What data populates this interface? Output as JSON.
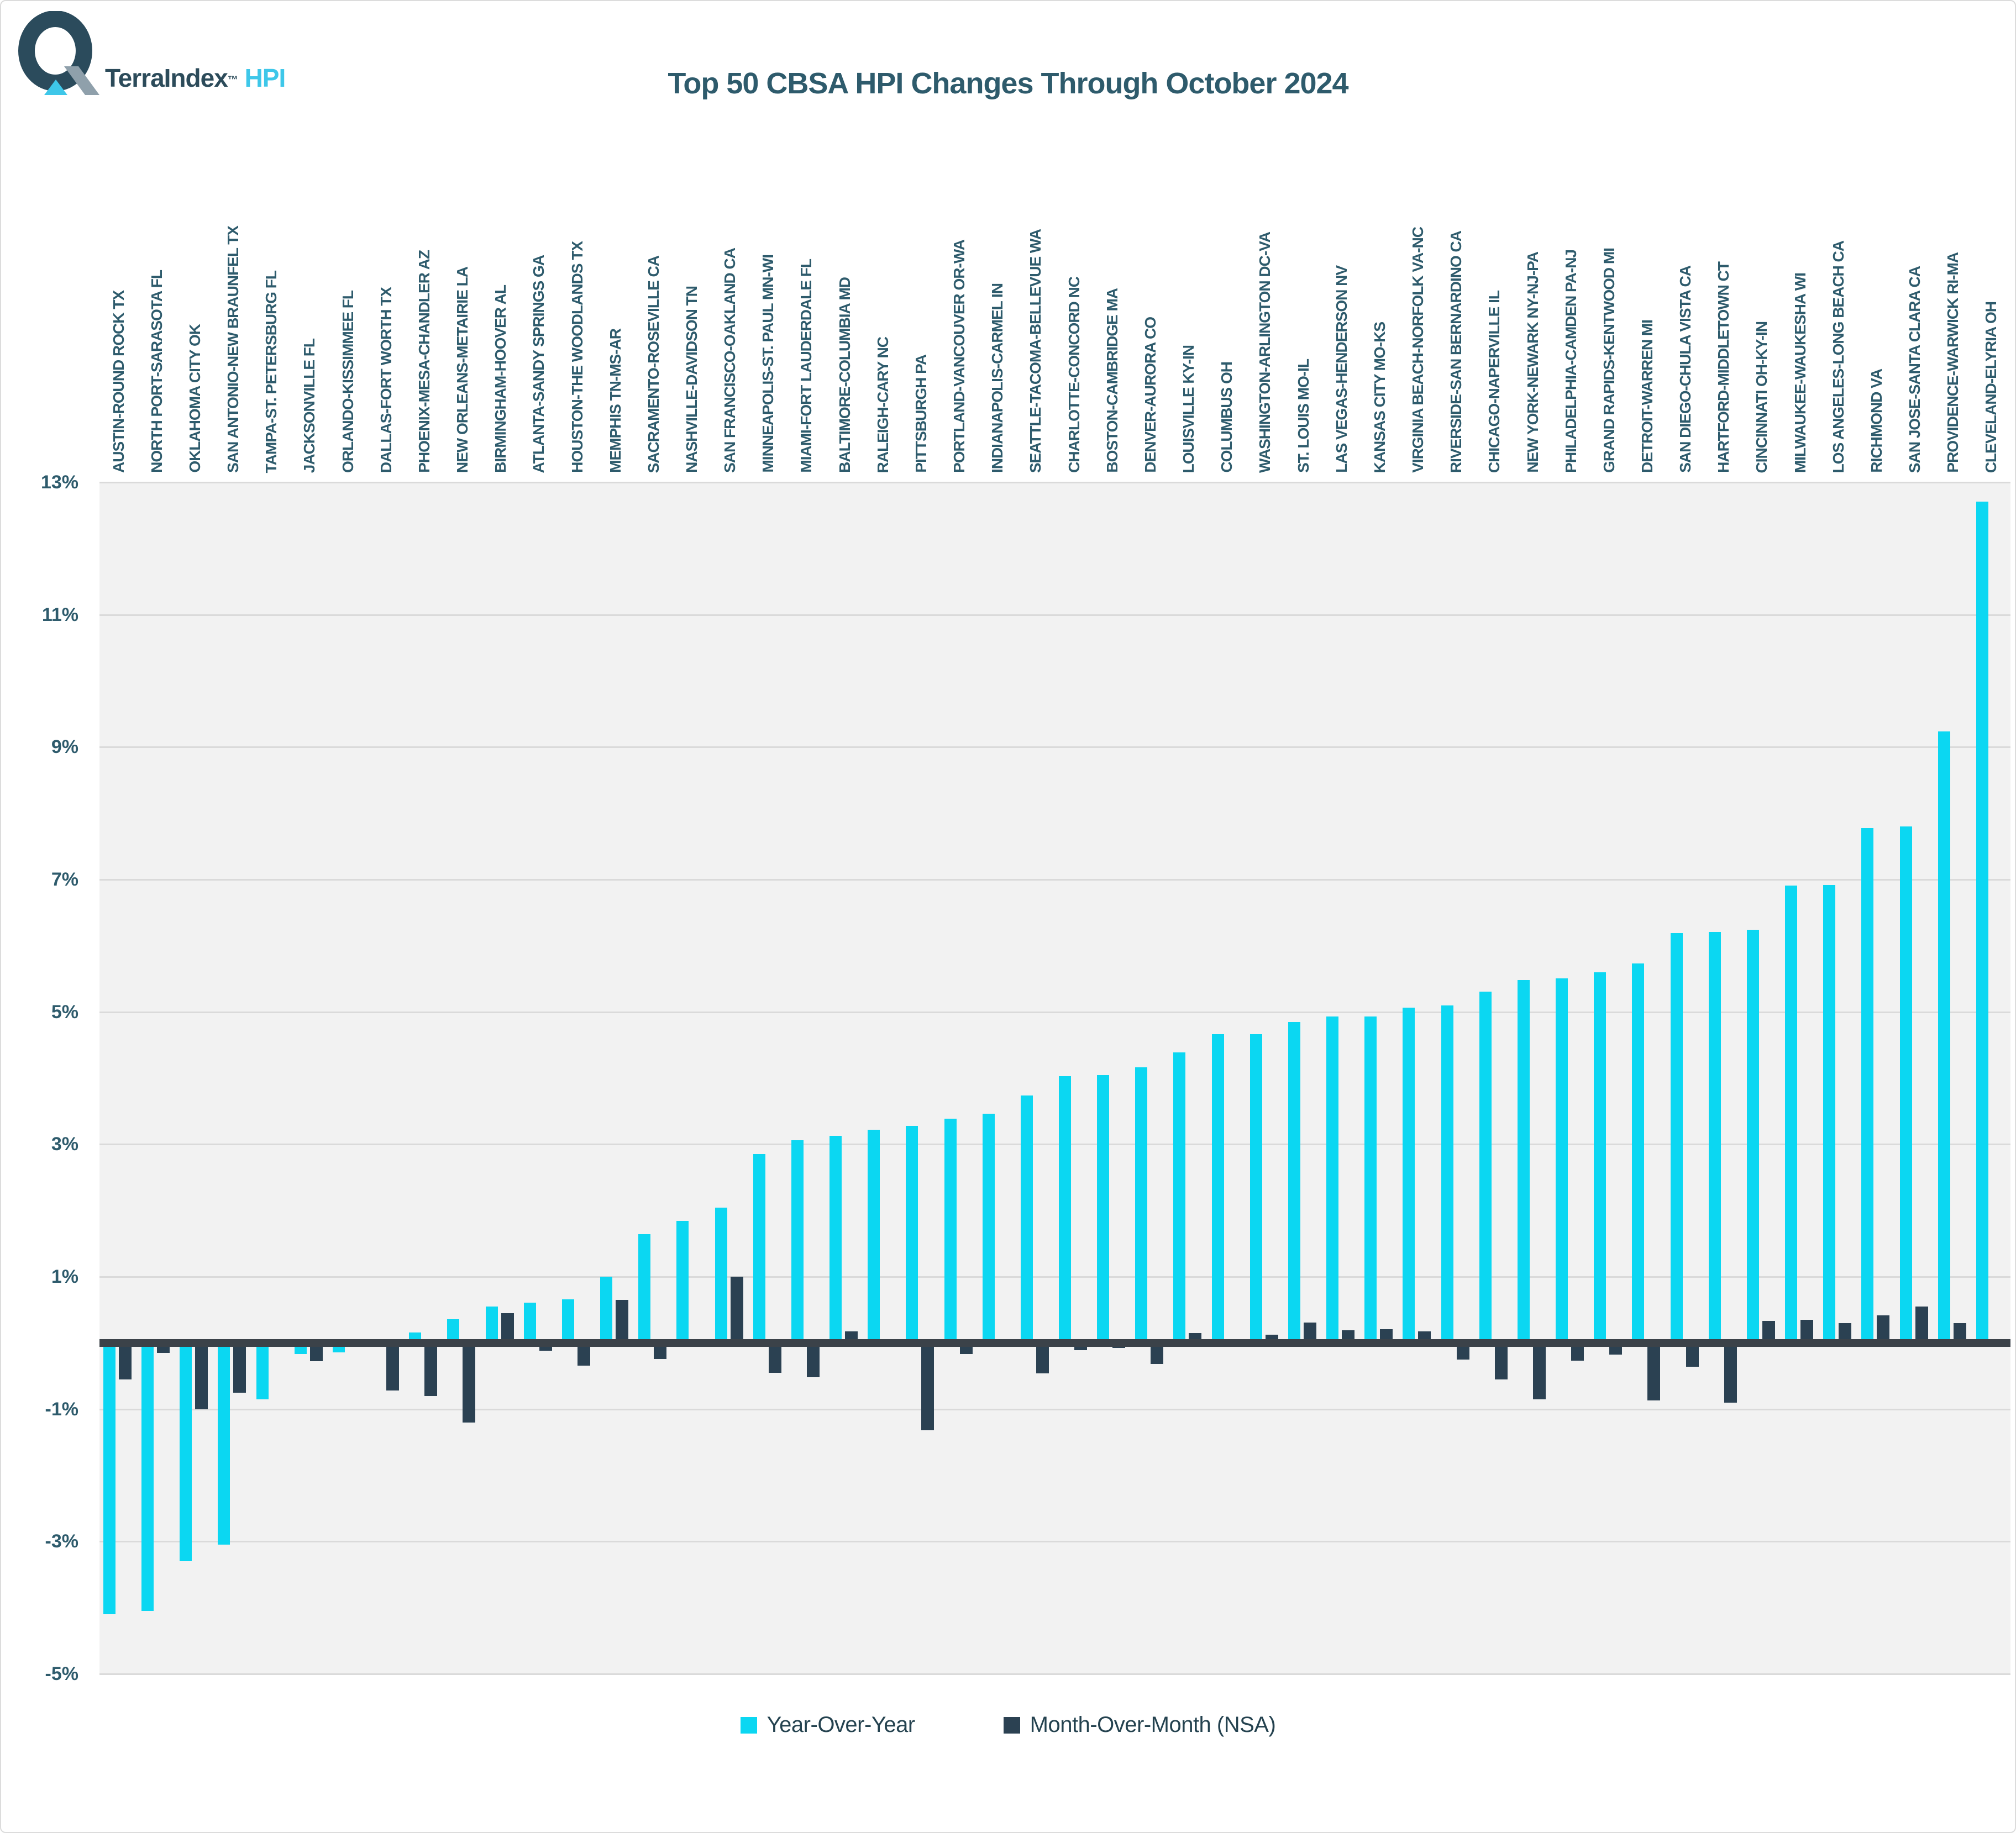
{
  "logo": {
    "brand": "TerraIndex",
    "trademark": "™",
    "product": "HPI"
  },
  "chart_data": {
    "type": "bar",
    "title": "Top 50 CBSA HPI Changes Through October 2024",
    "xlabel": "",
    "ylabel": "",
    "ylim": [
      -5,
      13
    ],
    "grid": true,
    "legend_position": "bottom",
    "y_tick_labels": [
      "13%",
      "11%",
      "9%",
      "7%",
      "5%",
      "3%",
      "1%",
      "-1%",
      "-3%",
      "-5%"
    ],
    "categories": [
      "AUSTIN-ROUND ROCK TX",
      "NORTH PORT-SARASOTA FL",
      "OKLAHOMA CITY OK",
      "SAN ANTONIO-NEW BRAUNFEL TX",
      "TAMPA-ST. PETERSBURG FL",
      "JACKSONVILLE FL",
      "ORLANDO-KISSIMMEE FL",
      "DALLAS-FORT WORTH TX",
      "PHOENIX-MESA-CHANDLER AZ",
      "NEW ORLEANS-METAIRIE LA",
      "BIRMINGHAM-HOOVER AL",
      "ATLANTA-SANDY SPRINGS GA",
      "HOUSTON-THE WOODLANDS TX",
      "MEMPHIS TN-MS-AR",
      "SACRAMENTO-ROSEVILLE CA",
      "NASHVILLE-DAVIDSON TN",
      "SAN FRANCISCO-OAKLAND CA",
      "MINNEAPOLIS-ST. PAUL MN-WI",
      "MIAMI-FORT LAUDERDALE FL",
      "BALTIMORE-COLUMBIA MD",
      "RALEIGH-CARY NC",
      "PITTSBURGH PA",
      "PORTLAND-VANCOUVER OR-WA",
      "INDIANAPOLIS-CARMEL IN",
      "SEATTLE-TACOMA-BELLEVUE WA",
      "CHARLOTTE-CONCORD NC",
      "BOSTON-CAMBRIDGE MA",
      "DENVER-AURORA CO",
      "LOUISVILLE KY-IN",
      "COLUMBUS OH",
      "WASHINGTON-ARLINGTON DC-VA",
      "ST. LOUIS MO-IL",
      "LAS VEGAS-HENDERSON NV",
      "KANSAS CITY MO-KS",
      "VIRGINIA BEACH-NORFOLK VA-NC",
      "RIVERSIDE-SAN BERNARDINO CA",
      "CHICAGO-NAPERVILLE IL",
      "NEW YORK-NEWARK NY-NJ-PA",
      "PHILADELPHIA-CAMDEN PA-NJ",
      "GRAND RAPIDS-KENTWOOD MI",
      "DETROIT-WARREN MI",
      "SAN DIEGO-CHULA VISTA CA",
      "HARTFORD-MIDDLETOWN CT",
      "CINCINNATI OH-KY-IN",
      "MILWAUKEE-WAUKESHA WI",
      "LOS ANGELES-LONG BEACH CA",
      "RICHMOND VA",
      "SAN JOSE-SANTA CLARA CA",
      "PROVIDENCE-WARWICK RI-MA",
      "CLEVELAND-ELYRIA OH"
    ],
    "series": [
      {
        "name": "Year-Over-Year",
        "color": "#0bd7f2",
        "values": [
          -4.1,
          -4.05,
          -3.3,
          -3.05,
          -0.85,
          -0.17,
          -0.14,
          0,
          0.16,
          0.36,
          0.55,
          0.61,
          0.66,
          1.0,
          1.64,
          1.84,
          2.04,
          2.85,
          3.06,
          3.13,
          3.22,
          3.28,
          3.39,
          3.46,
          3.74,
          4.03,
          4.05,
          4.16,
          4.39,
          4.66,
          4.66,
          4.85,
          4.93,
          4.93,
          5.06,
          5.1,
          5.31,
          5.48,
          5.51,
          5.6,
          5.73,
          6.19,
          6.21,
          6.24,
          6.91,
          6.92,
          7.78,
          7.8,
          9.24,
          12.71
        ]
      },
      {
        "name": "Month-Over-Month (NSA)",
        "color": "#2b4152",
        "values": [
          -0.55,
          -0.15,
          -1.0,
          -0.75,
          0,
          -0.28,
          -0.05,
          -0.72,
          -0.8,
          -1.2,
          0.45,
          -0.12,
          -0.34,
          0.65,
          -0.24,
          0.05,
          1.0,
          -0.45,
          -0.52,
          0.17,
          0.05,
          -1.32,
          -0.17,
          0,
          -0.46,
          -0.11,
          -0.08,
          -0.32,
          0.15,
          0,
          0.12,
          0.31,
          0.19,
          0.21,
          0.17,
          -0.25,
          -0.55,
          -0.85,
          -0.27,
          -0.18,
          -0.87,
          -0.36,
          -0.9,
          0.33,
          0.35,
          0.3,
          0.42,
          0.55,
          0.3,
          -0.05
        ]
      }
    ]
  }
}
